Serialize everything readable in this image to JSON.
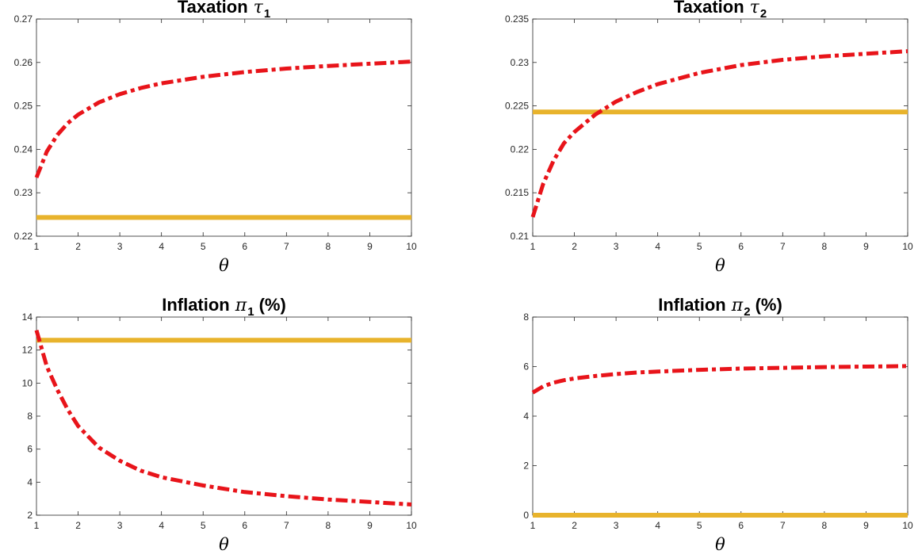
{
  "chart_data": [
    {
      "type": "line",
      "title": {
        "main": "Taxation",
        "symbol": "τ",
        "subscript": "1",
        "suffix": ""
      },
      "xlabel": "θ",
      "ylabel": "",
      "xlim": [
        1,
        10
      ],
      "ylim": [
        0.22,
        0.27
      ],
      "xticks": [
        1,
        2,
        3,
        4,
        5,
        6,
        7,
        8,
        9,
        10
      ],
      "yticks": [
        0.22,
        0.23,
        0.24,
        0.25,
        0.26,
        0.27
      ],
      "ytick_labels": [
        "0.22",
        "0.23",
        "0.24",
        "0.25",
        "0.26",
        "0.27"
      ],
      "grid": false,
      "series": [
        {
          "style": "dashdot",
          "color": "#e8141a",
          "x": [
            1,
            1.25,
            1.5,
            1.75,
            2,
            2.5,
            3,
            3.5,
            4,
            5,
            6,
            7,
            8,
            9,
            10
          ],
          "y": [
            0.2335,
            0.2395,
            0.2433,
            0.246,
            0.248,
            0.2508,
            0.2527,
            0.2541,
            0.2552,
            0.2567,
            0.2578,
            0.2586,
            0.2592,
            0.2597,
            0.2602
          ]
        },
        {
          "style": "solid",
          "color": "#e8b32c",
          "x": [
            1,
            10
          ],
          "y": [
            0.2243,
            0.2243
          ]
        }
      ]
    },
    {
      "type": "line",
      "title": {
        "main": "Taxation",
        "symbol": "τ",
        "subscript": "2",
        "suffix": ""
      },
      "xlabel": "θ",
      "ylabel": "",
      "xlim": [
        1,
        10
      ],
      "ylim": [
        0.21,
        0.235
      ],
      "xticks": [
        1,
        2,
        3,
        4,
        5,
        6,
        7,
        8,
        9,
        10
      ],
      "yticks": [
        0.21,
        0.215,
        0.22,
        0.225,
        0.23,
        0.235
      ],
      "ytick_labels": [
        "0.21",
        "0.215",
        "0.22",
        "0.225",
        "0.23",
        "0.235"
      ],
      "grid": false,
      "series": [
        {
          "style": "dashdot",
          "color": "#e8141a",
          "x": [
            1,
            1.25,
            1.5,
            1.75,
            2,
            2.5,
            3,
            3.5,
            4,
            5,
            6,
            7,
            8,
            9,
            10
          ],
          "y": [
            0.2122,
            0.216,
            0.2187,
            0.2207,
            0.222,
            0.224,
            0.2255,
            0.2266,
            0.2275,
            0.2288,
            0.2297,
            0.2303,
            0.2307,
            0.231,
            0.2313
          ]
        },
        {
          "style": "solid",
          "color": "#e8b32c",
          "x": [
            1,
            10
          ],
          "y": [
            0.2243,
            0.2243
          ]
        }
      ]
    },
    {
      "type": "line",
      "title": {
        "main": "Inflation",
        "symbol": "π",
        "subscript": "1",
        "suffix": "(%)"
      },
      "xlabel": "θ",
      "ylabel": "",
      "xlim": [
        1,
        10
      ],
      "ylim": [
        2,
        14
      ],
      "xticks": [
        1,
        2,
        3,
        4,
        5,
        6,
        7,
        8,
        9,
        10
      ],
      "yticks": [
        2,
        4,
        6,
        8,
        10,
        12,
        14
      ],
      "ytick_labels": [
        "2",
        "4",
        "6",
        "8",
        "10",
        "12",
        "14"
      ],
      "grid": false,
      "series": [
        {
          "style": "dashdot",
          "color": "#e8141a",
          "x": [
            1,
            1.25,
            1.5,
            1.75,
            2,
            2.5,
            3,
            3.5,
            4,
            5,
            6,
            7,
            8,
            9,
            10
          ],
          "y": [
            13.2,
            11.0,
            9.6,
            8.4,
            7.4,
            6.1,
            5.3,
            4.7,
            4.3,
            3.8,
            3.4,
            3.15,
            2.95,
            2.8,
            2.65
          ]
        },
        {
          "style": "solid",
          "color": "#e8b32c",
          "x": [
            1,
            10
          ],
          "y": [
            12.6,
            12.6
          ]
        }
      ]
    },
    {
      "type": "line",
      "title": {
        "main": "Inflation",
        "symbol": "π",
        "subscript": "2",
        "suffix": "(%)"
      },
      "xlabel": "θ",
      "ylabel": "",
      "xlim": [
        1,
        10
      ],
      "ylim": [
        0,
        8
      ],
      "xticks": [
        1,
        2,
        3,
        4,
        5,
        6,
        7,
        8,
        9,
        10
      ],
      "yticks": [
        0,
        2,
        4,
        6,
        8
      ],
      "ytick_labels": [
        "0",
        "2",
        "4",
        "6",
        "8"
      ],
      "grid": false,
      "series": [
        {
          "style": "dashdot",
          "color": "#e8141a",
          "x": [
            1,
            1.25,
            1.5,
            1.75,
            2,
            2.5,
            3,
            3.5,
            4,
            5,
            6,
            7,
            8,
            9,
            10
          ],
          "y": [
            4.95,
            5.2,
            5.35,
            5.45,
            5.52,
            5.62,
            5.7,
            5.76,
            5.8,
            5.87,
            5.92,
            5.95,
            5.98,
            6.0,
            6.02
          ]
        },
        {
          "style": "solid",
          "color": "#e8b32c",
          "x": [
            1,
            10
          ],
          "y": [
            0.0,
            0.0
          ]
        }
      ]
    }
  ]
}
